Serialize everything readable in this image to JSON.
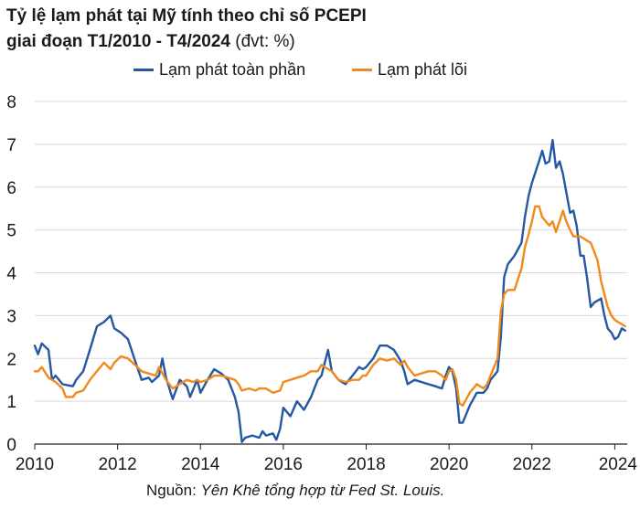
{
  "title_line1": "Tỷ lệ lạm phát tại Mỹ tính theo chỉ số PCEPI",
  "title_line2": "giai đoạn T1/2010 - T4/2024",
  "title_unit": " (đvt: %)",
  "source_label": "Nguồn: ",
  "source_text": "Yên Khê tổng hợp từ Fed St. Louis.",
  "colors": {
    "headline": "#2457a4",
    "core": "#f18a1c",
    "grid": "#d9d9d9"
  },
  "chart_data": {
    "type": "line",
    "title": "Tỷ lệ lạm phát tại Mỹ tính theo chỉ số PCEPI giai đoạn T1/2010 - T4/2024",
    "xlabel": "",
    "ylabel": "",
    "xlim": [
      2010,
      2024.33
    ],
    "ylim": [
      0,
      8
    ],
    "x_ticks": [
      "2010",
      "2012",
      "2014",
      "2016",
      "2018",
      "2020",
      "2022",
      "2024"
    ],
    "y_ticks": [
      "0",
      "1",
      "2",
      "3",
      "4",
      "5",
      "6",
      "7",
      "8"
    ],
    "grid": "horizontal",
    "legend_position": "top",
    "series": [
      {
        "name": "Lạm phát toàn phần",
        "color": "#2457a4",
        "points": [
          [
            2010.0,
            2.3
          ],
          [
            2010.08,
            2.1
          ],
          [
            2010.17,
            2.35
          ],
          [
            2010.33,
            2.2
          ],
          [
            2010.42,
            1.5
          ],
          [
            2010.5,
            1.6
          ],
          [
            2010.67,
            1.4
          ],
          [
            2010.92,
            1.35
          ],
          [
            2011.0,
            1.5
          ],
          [
            2011.17,
            1.7
          ],
          [
            2011.33,
            2.2
          ],
          [
            2011.5,
            2.75
          ],
          [
            2011.67,
            2.85
          ],
          [
            2011.83,
            3.0
          ],
          [
            2011.92,
            2.7
          ],
          [
            2012.08,
            2.6
          ],
          [
            2012.25,
            2.45
          ],
          [
            2012.42,
            1.95
          ],
          [
            2012.58,
            1.5
          ],
          [
            2012.75,
            1.55
          ],
          [
            2012.83,
            1.45
          ],
          [
            2013.0,
            1.6
          ],
          [
            2013.08,
            2.0
          ],
          [
            2013.17,
            1.55
          ],
          [
            2013.33,
            1.05
          ],
          [
            2013.5,
            1.5
          ],
          [
            2013.67,
            1.35
          ],
          [
            2013.75,
            1.1
          ],
          [
            2013.92,
            1.5
          ],
          [
            2014.0,
            1.2
          ],
          [
            2014.17,
            1.5
          ],
          [
            2014.33,
            1.75
          ],
          [
            2014.5,
            1.65
          ],
          [
            2014.67,
            1.5
          ],
          [
            2014.83,
            1.1
          ],
          [
            2014.92,
            0.75
          ],
          [
            2015.0,
            0.05
          ],
          [
            2015.08,
            0.15
          ],
          [
            2015.25,
            0.2
          ],
          [
            2015.42,
            0.15
          ],
          [
            2015.5,
            0.3
          ],
          [
            2015.58,
            0.2
          ],
          [
            2015.75,
            0.25
          ],
          [
            2015.83,
            0.1
          ],
          [
            2015.92,
            0.35
          ],
          [
            2016.0,
            0.85
          ],
          [
            2016.17,
            0.65
          ],
          [
            2016.33,
            1.0
          ],
          [
            2016.5,
            0.8
          ],
          [
            2016.67,
            1.1
          ],
          [
            2016.83,
            1.5
          ],
          [
            2016.92,
            1.6
          ],
          [
            2017.0,
            1.9
          ],
          [
            2017.08,
            2.2
          ],
          [
            2017.17,
            1.7
          ],
          [
            2017.33,
            1.5
          ],
          [
            2017.5,
            1.4
          ],
          [
            2017.67,
            1.6
          ],
          [
            2017.83,
            1.8
          ],
          [
            2017.92,
            1.75
          ],
          [
            2018.0,
            1.8
          ],
          [
            2018.17,
            2.0
          ],
          [
            2018.33,
            2.3
          ],
          [
            2018.5,
            2.3
          ],
          [
            2018.67,
            2.2
          ],
          [
            2018.83,
            1.95
          ],
          [
            2018.92,
            1.7
          ],
          [
            2019.0,
            1.4
          ],
          [
            2019.17,
            1.5
          ],
          [
            2019.33,
            1.45
          ],
          [
            2019.5,
            1.4
          ],
          [
            2019.67,
            1.35
          ],
          [
            2019.83,
            1.3
          ],
          [
            2019.92,
            1.6
          ],
          [
            2020.0,
            1.8
          ],
          [
            2020.08,
            1.7
          ],
          [
            2020.17,
            1.3
          ],
          [
            2020.25,
            0.5
          ],
          [
            2020.33,
            0.5
          ],
          [
            2020.5,
            0.9
          ],
          [
            2020.67,
            1.2
          ],
          [
            2020.83,
            1.2
          ],
          [
            2020.92,
            1.3
          ],
          [
            2021.0,
            1.5
          ],
          [
            2021.17,
            1.7
          ],
          [
            2021.25,
            2.5
          ],
          [
            2021.33,
            3.9
          ],
          [
            2021.42,
            4.2
          ],
          [
            2021.58,
            4.4
          ],
          [
            2021.75,
            4.7
          ],
          [
            2021.83,
            5.3
          ],
          [
            2021.92,
            5.8
          ],
          [
            2022.0,
            6.1
          ],
          [
            2022.17,
            6.6
          ],
          [
            2022.25,
            6.85
          ],
          [
            2022.33,
            6.55
          ],
          [
            2022.42,
            6.6
          ],
          [
            2022.5,
            7.1
          ],
          [
            2022.58,
            6.45
          ],
          [
            2022.67,
            6.6
          ],
          [
            2022.75,
            6.3
          ],
          [
            2022.92,
            5.4
          ],
          [
            2023.0,
            5.45
          ],
          [
            2023.08,
            5.1
          ],
          [
            2023.17,
            4.4
          ],
          [
            2023.25,
            4.4
          ],
          [
            2023.33,
            3.9
          ],
          [
            2023.42,
            3.2
          ],
          [
            2023.5,
            3.3
          ],
          [
            2023.67,
            3.4
          ],
          [
            2023.75,
            3.0
          ],
          [
            2023.83,
            2.7
          ],
          [
            2023.92,
            2.6
          ],
          [
            2024.0,
            2.45
          ],
          [
            2024.08,
            2.5
          ],
          [
            2024.17,
            2.7
          ],
          [
            2024.25,
            2.65
          ]
        ]
      },
      {
        "name": "Lạm phát lõi",
        "color": "#f18a1c",
        "points": [
          [
            2010.0,
            1.7
          ],
          [
            2010.08,
            1.7
          ],
          [
            2010.17,
            1.8
          ],
          [
            2010.33,
            1.55
          ],
          [
            2010.5,
            1.45
          ],
          [
            2010.67,
            1.3
          ],
          [
            2010.75,
            1.1
          ],
          [
            2010.92,
            1.1
          ],
          [
            2011.0,
            1.2
          ],
          [
            2011.17,
            1.25
          ],
          [
            2011.33,
            1.5
          ],
          [
            2011.5,
            1.7
          ],
          [
            2011.67,
            1.9
          ],
          [
            2011.83,
            1.75
          ],
          [
            2011.92,
            1.9
          ],
          [
            2012.08,
            2.05
          ],
          [
            2012.25,
            2.0
          ],
          [
            2012.42,
            1.85
          ],
          [
            2012.58,
            1.7
          ],
          [
            2012.75,
            1.65
          ],
          [
            2012.92,
            1.6
          ],
          [
            2013.0,
            1.8
          ],
          [
            2013.17,
            1.5
          ],
          [
            2013.33,
            1.3
          ],
          [
            2013.5,
            1.4
          ],
          [
            2013.67,
            1.5
          ],
          [
            2013.83,
            1.45
          ],
          [
            2013.92,
            1.5
          ],
          [
            2014.0,
            1.45
          ],
          [
            2014.17,
            1.5
          ],
          [
            2014.33,
            1.6
          ],
          [
            2014.5,
            1.6
          ],
          [
            2014.67,
            1.55
          ],
          [
            2014.83,
            1.5
          ],
          [
            2014.92,
            1.4
          ],
          [
            2015.0,
            1.25
          ],
          [
            2015.17,
            1.3
          ],
          [
            2015.33,
            1.25
          ],
          [
            2015.42,
            1.3
          ],
          [
            2015.58,
            1.3
          ],
          [
            2015.75,
            1.2
          ],
          [
            2015.92,
            1.25
          ],
          [
            2016.0,
            1.45
          ],
          [
            2016.17,
            1.5
          ],
          [
            2016.33,
            1.55
          ],
          [
            2016.5,
            1.6
          ],
          [
            2016.67,
            1.7
          ],
          [
            2016.83,
            1.7
          ],
          [
            2016.92,
            1.85
          ],
          [
            2017.0,
            1.8
          ],
          [
            2017.17,
            1.7
          ],
          [
            2017.33,
            1.5
          ],
          [
            2017.5,
            1.45
          ],
          [
            2017.67,
            1.5
          ],
          [
            2017.83,
            1.5
          ],
          [
            2017.92,
            1.6
          ],
          [
            2018.0,
            1.6
          ],
          [
            2018.17,
            1.85
          ],
          [
            2018.33,
            2.0
          ],
          [
            2018.5,
            1.95
          ],
          [
            2018.67,
            2.0
          ],
          [
            2018.83,
            1.85
          ],
          [
            2018.92,
            1.95
          ],
          [
            2019.0,
            1.8
          ],
          [
            2019.17,
            1.6
          ],
          [
            2019.33,
            1.65
          ],
          [
            2019.5,
            1.7
          ],
          [
            2019.67,
            1.7
          ],
          [
            2019.83,
            1.6
          ],
          [
            2019.92,
            1.5
          ],
          [
            2020.0,
            1.7
          ],
          [
            2020.08,
            1.75
          ],
          [
            2020.17,
            1.5
          ],
          [
            2020.25,
            0.95
          ],
          [
            2020.33,
            0.9
          ],
          [
            2020.5,
            1.2
          ],
          [
            2020.67,
            1.4
          ],
          [
            2020.83,
            1.3
          ],
          [
            2020.92,
            1.4
          ],
          [
            2021.0,
            1.6
          ],
          [
            2021.17,
            2.0
          ],
          [
            2021.25,
            3.1
          ],
          [
            2021.33,
            3.5
          ],
          [
            2021.42,
            3.6
          ],
          [
            2021.58,
            3.6
          ],
          [
            2021.75,
            4.1
          ],
          [
            2021.83,
            4.6
          ],
          [
            2021.92,
            4.9
          ],
          [
            2022.0,
            5.2
          ],
          [
            2022.08,
            5.55
          ],
          [
            2022.17,
            5.55
          ],
          [
            2022.25,
            5.3
          ],
          [
            2022.42,
            5.1
          ],
          [
            2022.5,
            5.2
          ],
          [
            2022.58,
            4.95
          ],
          [
            2022.75,
            5.45
          ],
          [
            2022.83,
            5.2
          ],
          [
            2022.92,
            5.0
          ],
          [
            2023.0,
            4.85
          ],
          [
            2023.17,
            4.85
          ],
          [
            2023.33,
            4.75
          ],
          [
            2023.42,
            4.7
          ],
          [
            2023.58,
            4.3
          ],
          [
            2023.67,
            3.8
          ],
          [
            2023.75,
            3.5
          ],
          [
            2023.83,
            3.2
          ],
          [
            2023.92,
            3.0
          ],
          [
            2024.0,
            2.9
          ],
          [
            2024.08,
            2.85
          ],
          [
            2024.17,
            2.8
          ],
          [
            2024.25,
            2.75
          ]
        ]
      }
    ]
  }
}
